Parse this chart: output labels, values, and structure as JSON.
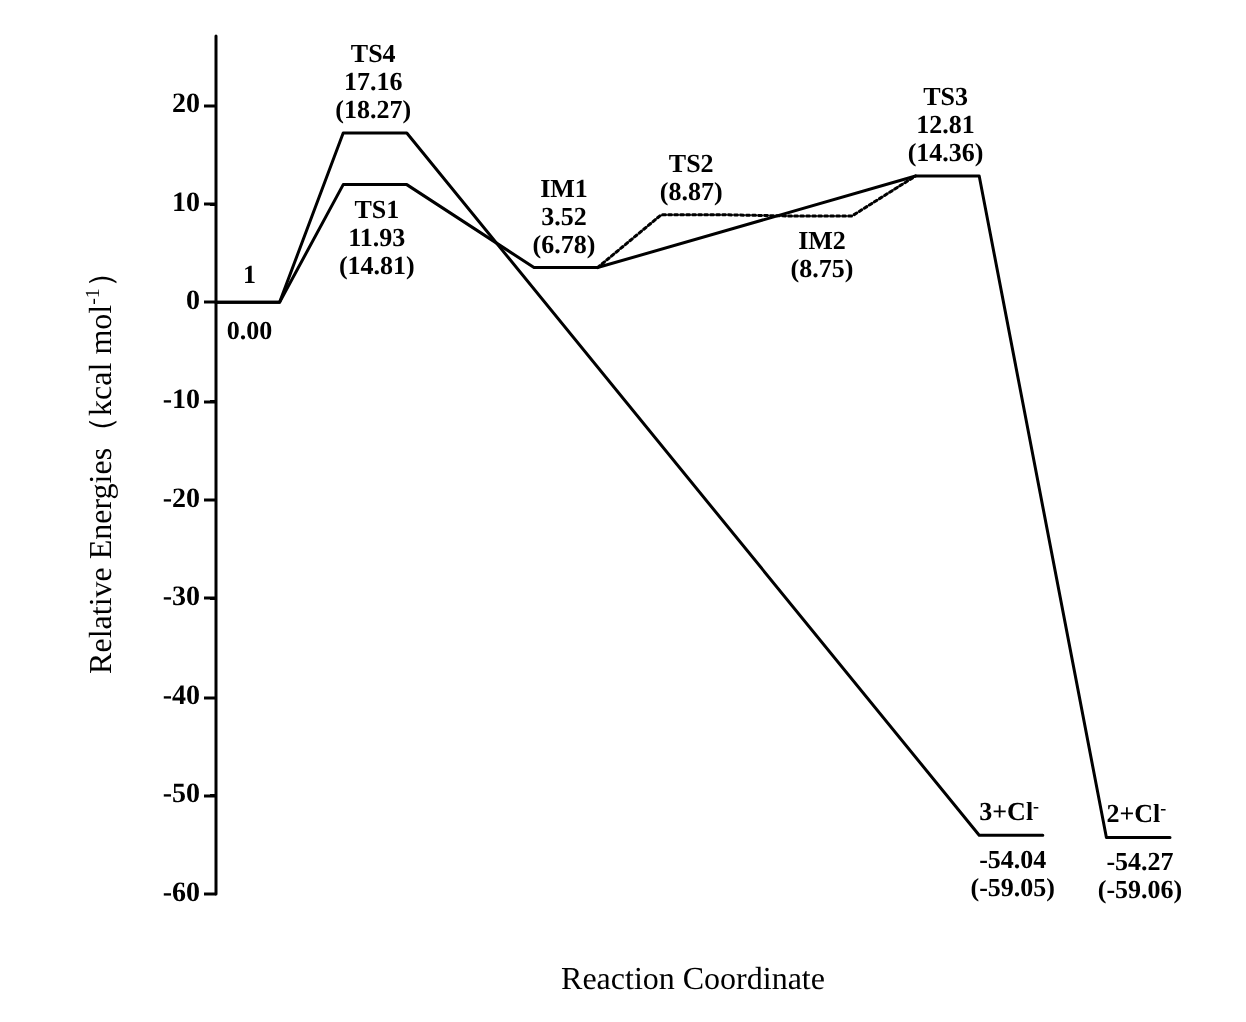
{
  "chart_data": {
    "type": "line",
    "xlabel": "Reaction Coordinate",
    "ylabel": "Relative Energies（kcal mol$^{-1}$）",
    "categories": [
      null,
      null,
      null,
      null,
      null,
      null,
      null,
      null,
      null,
      null,
      null,
      null,
      null,
      null,
      null,
      null
    ],
    "series": [
      {
        "color": "#000000",
        "line_style": "solid",
        "values": [
          0,
          0,
          17.16,
          17.16,
          null,
          null,
          null,
          null,
          null,
          null,
          null,
          null,
          -54.04,
          -54.04,
          null,
          null
        ],
        "value_labels": [
          null,
          "1\n\n0.00",
          "TS4\n17.16\n(18.27)",
          null,
          null,
          null,
          null,
          null,
          null,
          null,
          null,
          null,
          "3+Cl$^{-}$",
          "-54.04\n(-59.05)",
          null,
          null
        ]
      },
      {
        "color": "#000000",
        "line_style": "solid",
        "values": [
          0,
          0,
          11.93,
          11.93,
          null,
          3.52,
          3.52,
          null,
          null,
          null,
          null,
          12.81,
          12.81,
          null,
          -54.27,
          -54.27
        ],
        "value_labels": [
          null,
          null,
          null,
          "TS1\n11.93\n(14.81)",
          null,
          "IM1\n3.52\n(6.78)",
          null,
          null,
          null,
          null,
          null,
          "TS3\n12.81\n(14.36)",
          null,
          null,
          "2+Cl$^{-}$",
          "-54.27\n(-59.06)"
        ]
      },
      {
        "color": "#000000",
        "line_style": "dotted",
        "values": [
          null,
          null,
          null,
          null,
          null,
          null,
          3.52,
          8.87,
          8.87,
          8.75,
          8.75,
          12.81,
          null,
          null,
          null,
          null
        ],
        "value_labels": [
          null,
          null,
          null,
          null,
          null,
          null,
          null,
          "TS2\n(8.87)",
          null,
          null,
          "IM2\n(8.75)",
          null,
          null,
          null,
          null,
          null
        ]
      }
    ],
    "ylim": [
      -60,
      27
    ],
    "yticks": [
      -60,
      -50,
      -40,
      -30,
      -20,
      -10,
      0,
      10,
      20
    ],
    "tick_labels": "y",
    "grid": false,
    "marker": "none"
  }
}
